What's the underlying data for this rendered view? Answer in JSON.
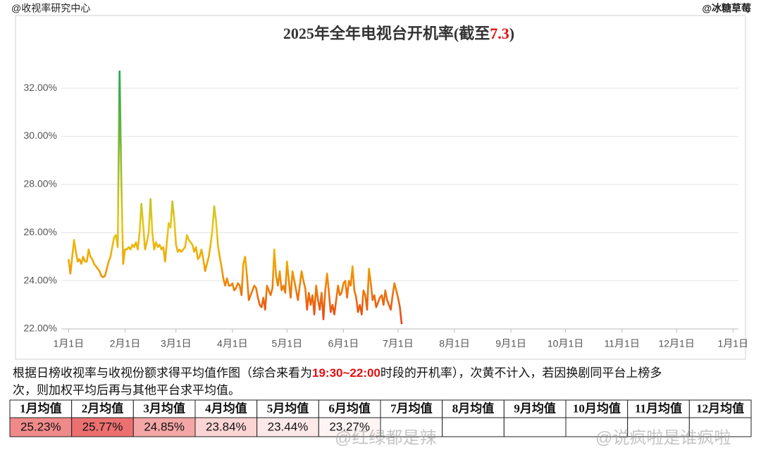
{
  "source_left": "@收视率研究中心",
  "source_right": "@冰糖草莓",
  "chart_data": {
    "type": "line",
    "title": {
      "before": "2025年全年电视台开机率(截至",
      "highlight": "7.3",
      "after": ")"
    },
    "x": [
      0,
      1,
      2,
      3,
      4,
      5,
      6,
      7,
      8,
      9,
      10,
      11,
      12,
      13,
      14,
      15,
      16,
      17,
      18,
      19,
      20,
      21,
      22,
      23,
      24,
      25,
      26,
      27,
      28,
      29,
      30,
      31,
      32,
      33,
      34,
      35,
      36,
      37,
      38,
      39,
      40,
      41,
      42,
      43,
      44,
      45,
      46,
      47,
      48,
      49,
      50,
      51,
      52,
      53,
      54,
      55,
      56,
      57,
      58,
      59,
      60,
      61,
      62,
      63,
      64,
      65,
      66,
      67,
      68,
      69,
      70,
      71,
      72,
      73,
      74,
      75,
      76,
      77,
      78,
      79,
      80,
      81,
      82,
      83,
      84,
      85,
      86,
      87,
      88,
      89,
      90,
      91,
      92,
      93,
      94,
      95,
      96,
      97,
      98,
      99,
      100,
      101,
      102,
      103,
      104,
      105,
      106,
      107,
      108,
      109,
      110,
      111,
      112,
      113,
      114,
      115,
      116,
      117,
      118,
      119,
      120,
      121,
      122,
      123,
      124,
      125,
      126,
      127,
      128,
      129,
      130,
      131,
      132,
      133,
      134,
      135,
      136,
      137,
      138,
      139,
      140,
      141,
      142,
      143,
      144,
      145,
      146,
      147,
      148,
      149,
      150,
      151,
      152,
      153,
      154,
      155,
      156,
      157,
      158,
      159,
      160,
      161,
      162,
      163,
      164,
      165,
      166,
      167,
      168,
      169,
      170,
      171,
      172,
      173,
      174,
      175,
      176,
      177,
      178,
      179,
      180,
      181,
      182,
      183
    ],
    "values": [
      24.9,
      24.3,
      25.0,
      25.7,
      25.2,
      24.8,
      24.9,
      24.7,
      25.0,
      24.8,
      24.8,
      25.3,
      25.0,
      24.9,
      24.7,
      24.6,
      24.5,
      24.4,
      24.2,
      24.15,
      24.2,
      24.5,
      24.8,
      25.0,
      25.4,
      25.8,
      25.9,
      25.4,
      32.7,
      28.0,
      24.7,
      25.3,
      25.3,
      25.4,
      25.3,
      25.5,
      25.4,
      25.6,
      25.3,
      26.0,
      27.2,
      26.3,
      25.3,
      25.6,
      26.0,
      27.4,
      26.0,
      25.3,
      25.6,
      25.4,
      25.5,
      25.3,
      25.4,
      24.8,
      25.6,
      26.4,
      26.2,
      27.3,
      26.6,
      25.5,
      25.2,
      25.3,
      25.2,
      25.3,
      25.4,
      25.9,
      25.7,
      25.6,
      25.5,
      25.2,
      25.4,
      24.9,
      25.0,
      25.3,
      24.9,
      24.4,
      24.7,
      25.0,
      25.5,
      26.1,
      27.1,
      26.5,
      25.5,
      25.0,
      24.6,
      24.1,
      23.8,
      24.1,
      23.8,
      23.8,
      23.9,
      23.6,
      23.7,
      23.9,
      23.8,
      23.4,
      24.7,
      25.0,
      24.2,
      23.2,
      23.4,
      23.6,
      23.8,
      23.7,
      23.3,
      23.0,
      22.9,
      23.3,
      22.8,
      23.8,
      23.6,
      23.4,
      23.7,
      25.3,
      24.2,
      23.8,
      24.4,
      23.6,
      23.8,
      23.5,
      24.8,
      24.0,
      23.3,
      24.4,
      24.0,
      23.6,
      23.2,
      23.8,
      24.4,
      24.0,
      23.7,
      22.8,
      23.5,
      23.0,
      23.4,
      22.6,
      23.8,
      23.2,
      22.8,
      23.5,
      22.4,
      23.6,
      24.3,
      23.5,
      22.7,
      23.0,
      22.6,
      23.2,
      23.8,
      23.4,
      23.5,
      23.9,
      24.0,
      23.3,
      24.0,
      23.8,
      24.6,
      23.6,
      23.3,
      22.7,
      23.0,
      22.6,
      23.6,
      23.4,
      22.8,
      24.5,
      23.9,
      23.2,
      23.4,
      22.9,
      23.1,
      23.3,
      23.4,
      23.0,
      23.6,
      23.2,
      23.0,
      22.8,
      23.4,
      23.9,
      23.6,
      23.3,
      22.9,
      22.2
    ],
    "colors": [
      "#e8381c",
      "#f0a500",
      "#e6c81c",
      "#1fa84e"
    ],
    "xlim": [
      -4,
      368
    ],
    "xticks": [
      {
        "value": 0,
        "label": "1月1日"
      },
      {
        "value": 31,
        "label": "2月1日"
      },
      {
        "value": 59,
        "label": "3月1日"
      },
      {
        "value": 90,
        "label": "4月1日"
      },
      {
        "value": 120,
        "label": "5月1日"
      },
      {
        "value": 151,
        "label": "6月1日"
      },
      {
        "value": 181,
        "label": "7月1日"
      },
      {
        "value": 212,
        "label": "8月1日"
      },
      {
        "value": 243,
        "label": "9月1日"
      },
      {
        "value": 273,
        "label": "10月1日"
      },
      {
        "value": 304,
        "label": "11月1日"
      },
      {
        "value": 334,
        "label": "12月1日"
      },
      {
        "value": 365,
        "label": "1月1日"
      }
    ],
    "ylim": [
      22,
      33
    ],
    "yticks": [
      {
        "value": 22,
        "label": "22.00%"
      },
      {
        "value": 24,
        "label": "24.00%"
      },
      {
        "value": 26,
        "label": "26.00%"
      },
      {
        "value": 28,
        "label": "28.00%"
      },
      {
        "value": 30,
        "label": "30.00%"
      },
      {
        "value": 32,
        "label": "32.00%"
      }
    ],
    "grid": true
  },
  "note": {
    "before": "根据日榜收视率与收视份额求得平均值作图（综合来看为",
    "highlight": "19:30~22:00",
    "after": "时段的开机率），次黄不计入，若因换剧同平台上榜多",
    "line2": "次，则加权平均后再与其他平台求平均值。"
  },
  "table": {
    "headers": [
      "1月均值",
      "2月均值",
      "3月均值",
      "4月均值",
      "5月均值",
      "6月均值",
      "7月均值",
      "8月均值",
      "9月均值",
      "10月均值",
      "11月均值",
      "12月均值"
    ],
    "values": [
      "25.23%",
      "25.77%",
      "24.85%",
      "23.84%",
      "23.44%",
      "23.27%"
    ],
    "cell_colors": [
      "#f08a8a",
      "#ec7070",
      "#f4a6a6",
      "#fbd4d4",
      "#fde8e8",
      "#fff4f4"
    ]
  },
  "watermarks": [
    "@红绿都是辣",
    "@说疯啦是谁疯啦"
  ]
}
